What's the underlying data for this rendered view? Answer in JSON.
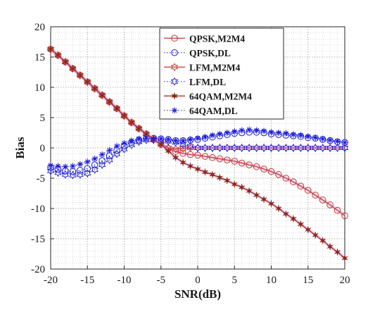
{
  "chart_data": {
    "type": "line",
    "xlabel": "SNR(dB)",
    "ylabel": "Bias",
    "xlim": [
      -20,
      20
    ],
    "ylim": [
      -20,
      20
    ],
    "xticks": [
      -20,
      -15,
      -10,
      -5,
      0,
      5,
      10,
      15,
      20
    ],
    "yticks": [
      -20,
      -15,
      -10,
      -5,
      0,
      5,
      10,
      15,
      20
    ],
    "grid": "on (major and minor, dotted)",
    "legend_position": "top-right",
    "x": [
      -20,
      -19,
      -18,
      -17,
      -16,
      -15,
      -14,
      -13,
      -12,
      -11,
      -10,
      -9,
      -8,
      -7,
      -6,
      -5,
      -4,
      -3,
      -2,
      -1,
      0,
      1,
      2,
      3,
      4,
      5,
      6,
      7,
      8,
      9,
      10,
      11,
      12,
      13,
      14,
      15,
      16,
      17,
      18,
      19,
      20
    ],
    "series": [
      {
        "name": "QPSK,M2M4",
        "color": "#c0392b",
        "line": "solid",
        "marker": "circle",
        "values": [
          16.3,
          15.3,
          14.2,
          13.1,
          12.0,
          10.9,
          9.8,
          8.7,
          7.6,
          6.5,
          5.3,
          4.2,
          3.2,
          2.3,
          1.4,
          0.6,
          -0.1,
          -0.6,
          -0.9,
          -1.1,
          -1.2,
          -1.4,
          -1.6,
          -1.8,
          -2.0,
          -2.2,
          -2.5,
          -2.8,
          -3.1,
          -3.5,
          -3.9,
          -4.4,
          -5.0,
          -5.6,
          -6.3,
          -7.0,
          -7.8,
          -8.6,
          -9.4,
          -10.3,
          -11.2
        ]
      },
      {
        "name": "QPSK,DL",
        "color": "#1a1adb",
        "line": "dotted",
        "marker": "circle",
        "values": [
          -3.2,
          -3.5,
          -3.8,
          -3.9,
          -3.7,
          -3.4,
          -2.8,
          -2.1,
          -1.3,
          -0.4,
          0.3,
          0.9,
          1.3,
          1.6,
          1.6,
          1.5,
          1.4,
          1.2,
          1.2,
          1.3,
          1.4,
          1.6,
          1.8,
          2.0,
          2.2,
          2.4,
          2.5,
          2.6,
          2.6,
          2.5,
          2.3,
          2.2,
          2.1,
          2.0,
          1.9,
          1.7,
          1.6,
          1.4,
          1.2,
          1.0,
          0.9
        ]
      },
      {
        "name": "LFM,M2M4",
        "color": "#c0392b",
        "line": "solid",
        "marker": "hexagram",
        "values": [
          16.3,
          15.3,
          14.2,
          13.1,
          12.0,
          10.9,
          9.8,
          8.7,
          7.6,
          6.5,
          5.3,
          4.2,
          3.2,
          2.3,
          1.4,
          0.6,
          0.0,
          -0.2,
          -0.1,
          0.0,
          0.0,
          0.0,
          0.0,
          0.0,
          0.0,
          0.0,
          0.0,
          0.0,
          0.0,
          0.0,
          0.0,
          0.0,
          0.0,
          0.0,
          0.0,
          0.0,
          0.0,
          0.0,
          0.0,
          0.0,
          0.0
        ]
      },
      {
        "name": "LFM,DL",
        "color": "#1a1adb",
        "line": "dotted",
        "marker": "hexagram",
        "values": [
          -3.8,
          -4.1,
          -4.4,
          -4.5,
          -4.4,
          -4.2,
          -3.6,
          -2.8,
          -2.0,
          -1.0,
          -0.2,
          0.5,
          1.0,
          1.3,
          1.3,
          1.2,
          1.1,
          0.9,
          0.6,
          0.3,
          0.0,
          0.0,
          0.0,
          0.0,
          0.0,
          0.0,
          0.0,
          0.0,
          0.0,
          0.0,
          0.0,
          0.0,
          0.0,
          0.0,
          0.0,
          0.0,
          0.0,
          0.0,
          0.0,
          0.0,
          0.0
        ]
      },
      {
        "name": "64QAM,M2M4",
        "color": "#8b2a1a",
        "line": "solid",
        "marker": "star",
        "values": [
          16.3,
          15.3,
          14.2,
          13.1,
          12.0,
          10.9,
          9.8,
          8.7,
          7.6,
          6.5,
          5.3,
          4.2,
          3.2,
          2.3,
          1.4,
          0.6,
          -0.5,
          -1.6,
          -2.4,
          -3.0,
          -3.5,
          -4.0,
          -4.4,
          -4.9,
          -5.4,
          -6.0,
          -6.5,
          -7.1,
          -7.8,
          -8.5,
          -9.2,
          -10.0,
          -10.9,
          -11.7,
          -12.6,
          -13.5,
          -14.4,
          -15.3,
          -16.3,
          -17.2,
          -18.2
        ]
      },
      {
        "name": "64QAM,DL",
        "color": "#1a1adb",
        "line": "dotted",
        "marker": "asterisk",
        "values": [
          -2.9,
          -3.0,
          -3.1,
          -3.0,
          -2.7,
          -2.3,
          -1.8,
          -1.1,
          -0.4,
          0.3,
          0.8,
          1.2,
          1.5,
          1.6,
          1.5,
          1.5,
          1.4,
          1.2,
          1.2,
          1.4,
          1.6,
          1.8,
          2.1,
          2.3,
          2.5,
          2.7,
          2.9,
          3.0,
          2.9,
          2.8,
          2.6,
          2.5,
          2.4,
          2.2,
          2.1,
          1.9,
          1.7,
          1.5,
          1.3,
          1.1,
          0.9
        ]
      }
    ]
  }
}
